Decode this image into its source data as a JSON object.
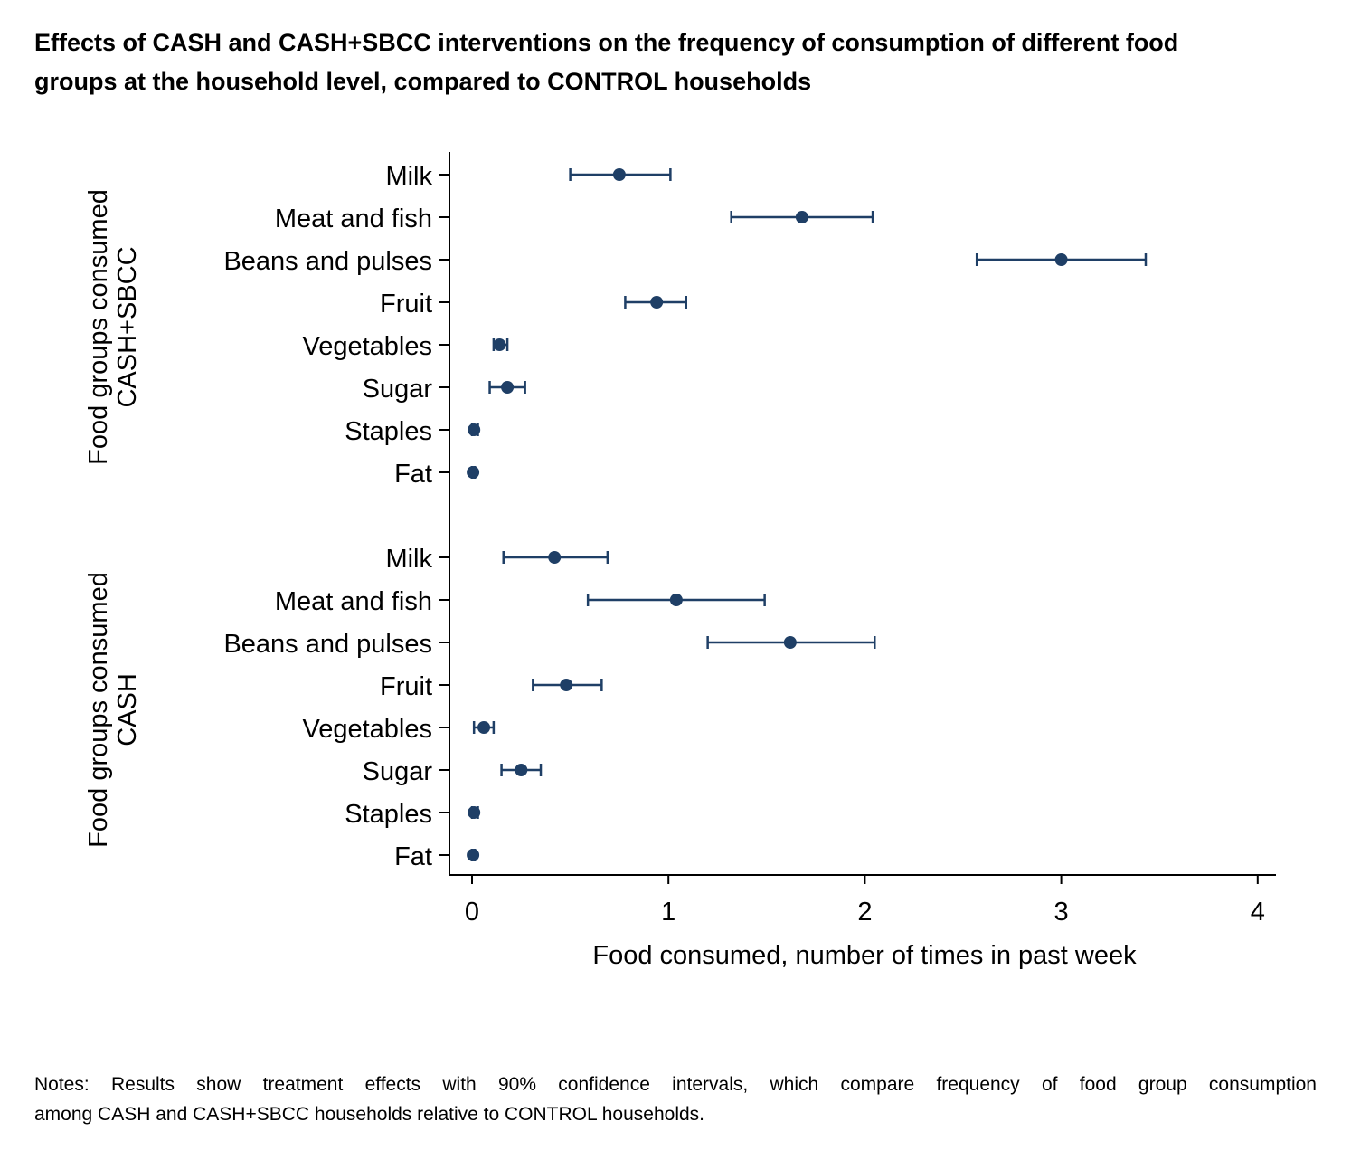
{
  "title_lines": [
    "Effects of CASH and CASH+SBCC interventions on the frequency of consumption of different food",
    "groups at the household level, compared to CONTROL households"
  ],
  "notes_lines": [
    "Notes: Results show treatment effects with 90% confidence intervals, which compare frequency of food group consumption",
    "among CASH and CASH+SBCC households relative to CONTROL households."
  ],
  "colors": {
    "marker": "#1f3f66",
    "axis": "#000000",
    "text": "#000000"
  },
  "chart_data": {
    "type": "scatter",
    "subtype": "coefficient plot with 90% confidence intervals",
    "xlabel": "Food consumed, number of times in past week",
    "xlim": [
      0,
      4
    ],
    "xticks": [
      0,
      1,
      2,
      3,
      4
    ],
    "grid": false,
    "groups": [
      {
        "label_lines": [
          "Food groups consumed",
          "CASH+SBCC"
        ],
        "items": [
          {
            "label": "Milk",
            "estimate": 0.75,
            "ci_low": 0.5,
            "ci_high": 1.01
          },
          {
            "label": "Meat and fish",
            "estimate": 1.68,
            "ci_low": 1.32,
            "ci_high": 2.04
          },
          {
            "label": "Beans and pulses",
            "estimate": 3.0,
            "ci_low": 2.57,
            "ci_high": 3.43
          },
          {
            "label": "Fruit",
            "estimate": 0.94,
            "ci_low": 0.78,
            "ci_high": 1.09
          },
          {
            "label": "Vegetables",
            "estimate": 0.14,
            "ci_low": 0.11,
            "ci_high": 0.18
          },
          {
            "label": "Sugar",
            "estimate": 0.18,
            "ci_low": 0.09,
            "ci_high": 0.27
          },
          {
            "label": "Staples",
            "estimate": 0.01,
            "ci_low": 0.0,
            "ci_high": 0.03
          },
          {
            "label": "Fat",
            "estimate": 0.005,
            "ci_low": 0.0,
            "ci_high": 0.015
          }
        ]
      },
      {
        "label_lines": [
          "Food groups consumed",
          "CASH"
        ],
        "items": [
          {
            "label": "Milk",
            "estimate": 0.42,
            "ci_low": 0.16,
            "ci_high": 0.69
          },
          {
            "label": "Meat and fish",
            "estimate": 1.04,
            "ci_low": 0.59,
            "ci_high": 1.49
          },
          {
            "label": "Beans and pulses",
            "estimate": 1.62,
            "ci_low": 1.2,
            "ci_high": 2.05
          },
          {
            "label": "Fruit",
            "estimate": 0.48,
            "ci_low": 0.31,
            "ci_high": 0.66
          },
          {
            "label": "Vegetables",
            "estimate": 0.06,
            "ci_low": 0.01,
            "ci_high": 0.11
          },
          {
            "label": "Sugar",
            "estimate": 0.25,
            "ci_low": 0.15,
            "ci_high": 0.35
          },
          {
            "label": "Staples",
            "estimate": 0.01,
            "ci_low": 0.0,
            "ci_high": 0.03
          },
          {
            "label": "Fat",
            "estimate": 0.005,
            "ci_low": 0.0,
            "ci_high": 0.015
          }
        ]
      }
    ]
  }
}
